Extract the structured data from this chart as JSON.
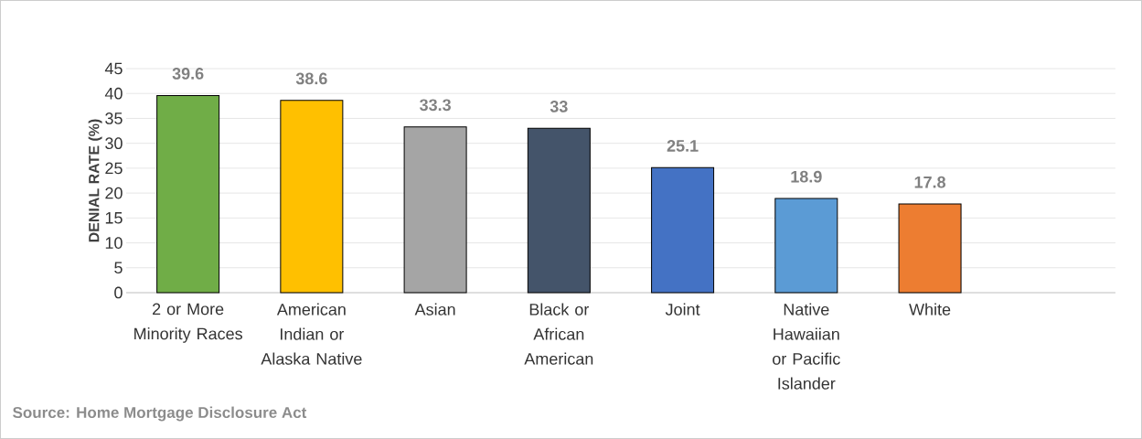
{
  "chart_data": {
    "type": "bar",
    "categories": [
      "2 or More Minority Races",
      "American Indian or Alaska Native",
      "Asian",
      "Black or African American",
      "Joint",
      "Native Hawaiian or Pacific Islander",
      "White",
      null
    ],
    "values": [
      39.6,
      38.6,
      33.3,
      33,
      25.1,
      18.9,
      17.8,
      null
    ],
    "colors": [
      "#70ad47",
      "#ffc000",
      "#a5a5a5",
      "#44546a",
      "#4472c4",
      "#5b9bd5",
      "#ed7d31",
      "#ffffff"
    ],
    "ylabel": "DENIAL RATE (%)",
    "ylim": [
      0,
      45
    ],
    "yticks": [
      0,
      5,
      10,
      15,
      20,
      25,
      30,
      35,
      40,
      45
    ],
    "grid": "y",
    "data_labels": true,
    "annotations": [
      "Source: Home Mortgage Disclosure Act"
    ]
  }
}
